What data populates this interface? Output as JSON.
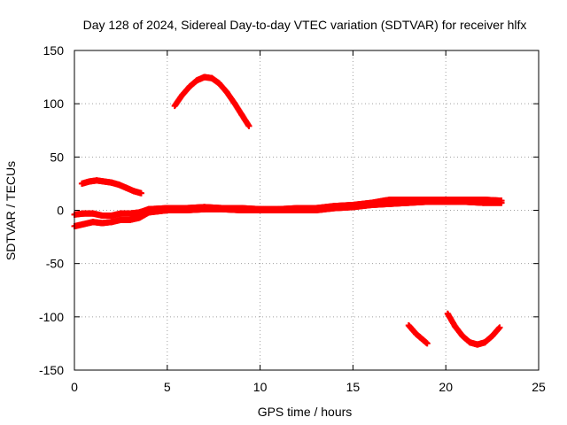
{
  "chart_data": {
    "type": "scatter",
    "title": "Day 128 of 2024, Sidereal Day-to-day VTEC variation (SDTVAR) for receiver hlfx",
    "xlabel": "GPS time / hours",
    "ylabel": "SDTVAR / TECUs",
    "xlim": [
      0,
      25
    ],
    "ylim": [
      -150,
      150
    ],
    "xticks": [
      0,
      5,
      10,
      15,
      20,
      25
    ],
    "yticks": [
      -150,
      -100,
      -50,
      0,
      50,
      100,
      150
    ],
    "xtick_labels": [
      "0",
      "5",
      "10",
      "15",
      "20",
      "25"
    ],
    "ytick_labels": [
      "-150",
      "-100",
      "-50",
      "0",
      "50",
      "100",
      "150"
    ],
    "grid": true,
    "marker": "plus",
    "color": "#ff0000",
    "series": [
      {
        "name": "main-band-upper",
        "x": [
          0.0,
          0.5,
          1.0,
          1.5,
          2.0,
          2.5,
          3.0,
          3.5,
          4.0,
          5.0,
          6.0,
          7.0,
          8.0,
          9.0,
          10.0,
          11.0,
          12.0,
          13.0,
          14.0,
          15.0,
          16.0,
          17.0,
          18.0,
          19.0,
          20.0,
          21.0,
          22.0,
          23.0
        ],
        "y": [
          -4,
          -3,
          -3,
          -5,
          -5,
          -3,
          -3,
          -2,
          1,
          2,
          2,
          3,
          2,
          2,
          1,
          1,
          2,
          2,
          4,
          5,
          7,
          10,
          10,
          10,
          10,
          10,
          10,
          9
        ]
      },
      {
        "name": "main-band-lower",
        "x": [
          0.0,
          0.5,
          1.0,
          1.5,
          2.0,
          2.5,
          3.0,
          3.5,
          4.0,
          5.0,
          6.0,
          7.0,
          8.0,
          9.0,
          10.0,
          11.0,
          12.0,
          13.0,
          14.0,
          15.0,
          16.0,
          17.0,
          18.0,
          19.0,
          20.0,
          21.0,
          22.0,
          23.0
        ],
        "y": [
          -15,
          -13,
          -11,
          -12,
          -11,
          -9,
          -9,
          -7,
          -2,
          0,
          0,
          1,
          1,
          0,
          0,
          0,
          0,
          0,
          2,
          3,
          5,
          6,
          7,
          8,
          8,
          8,
          7,
          7
        ]
      },
      {
        "name": "arc-early",
        "x": [
          0.4,
          0.8,
          1.2,
          1.6,
          2.0,
          2.4,
          2.8,
          3.2,
          3.6
        ],
        "y": [
          25,
          27,
          28,
          27,
          26,
          24,
          21,
          18,
          16
        ]
      },
      {
        "name": "arc-midday-high",
        "x": [
          5.4,
          5.8,
          6.2,
          6.6,
          7.0,
          7.4,
          7.8,
          8.2,
          8.6,
          9.0,
          9.4
        ],
        "y": [
          98,
          108,
          116,
          122,
          125,
          124,
          119,
          111,
          101,
          90,
          79
        ]
      },
      {
        "name": "arc-late-low-1",
        "x": [
          18.0,
          18.2,
          18.4,
          18.6,
          18.8,
          19.0
        ],
        "y": [
          -108,
          -112,
          -116,
          -119,
          -122,
          -125
        ]
      },
      {
        "name": "arc-late-low-2",
        "x": [
          20.1,
          20.5,
          20.9,
          21.3,
          21.7,
          22.1,
          22.5,
          22.9
        ],
        "y": [
          -97,
          -109,
          -118,
          -124,
          -126,
          -124,
          -118,
          -110
        ]
      }
    ]
  }
}
